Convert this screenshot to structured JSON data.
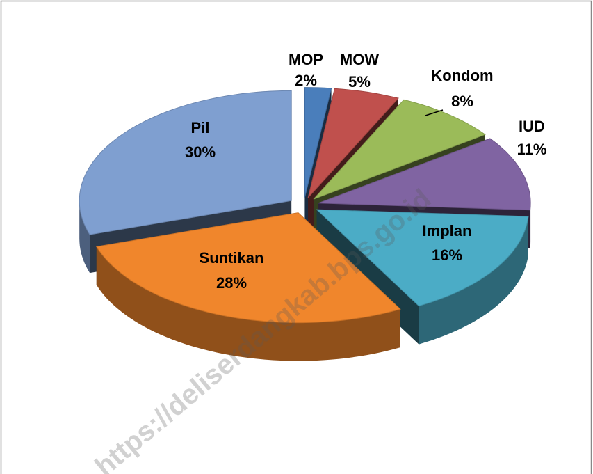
{
  "chart_data": {
    "type": "pie",
    "categories": [
      "MOP",
      "MOW",
      "Kondom",
      "IUD",
      "Implan",
      "Suntikan",
      "Pil"
    ],
    "values": [
      2,
      5,
      8,
      11,
      16,
      28,
      30
    ],
    "value_labels": [
      "2%",
      "5%",
      "8%",
      "11%",
      "16%",
      "28%",
      "30%"
    ],
    "colors": [
      "#4a7ebb",
      "#c0504d",
      "#9bbb59",
      "#8064a2",
      "#4bacc6",
      "#f0862c",
      "#7f9fd0"
    ],
    "watermark": "https://deliserdangkab.bps.go.id"
  }
}
